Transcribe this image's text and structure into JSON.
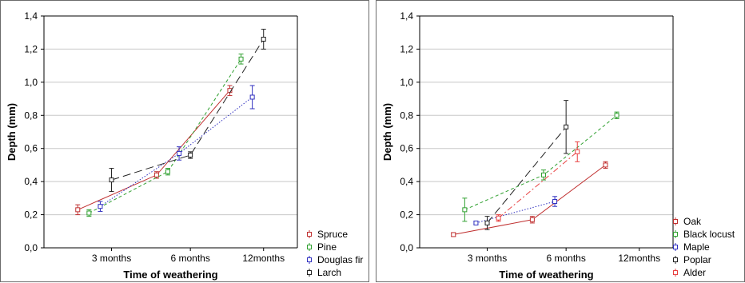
{
  "chart_data": [
    {
      "type": "line",
      "xlabel": "Time of weathering",
      "ylabel": "Depth (mm)",
      "categories": [
        "3 months",
        "6 months",
        "12months"
      ],
      "ylim": [
        0,
        1.4
      ],
      "yticks": [
        "0,0",
        "0,2",
        "0,4",
        "0,6",
        "0,8",
        "1,0",
        "1,2",
        "1,4"
      ],
      "grid": true,
      "legend_position": "bottom-right",
      "series": [
        {
          "name": "Spruce",
          "color": "#c03030",
          "dash": "solid",
          "x": [
            0.6,
            2.0,
            3.3
          ],
          "values": [
            0.23,
            0.44,
            0.95
          ],
          "err": [
            0.03,
            0.02,
            0.03
          ]
        },
        {
          "name": "Pine",
          "color": "#30a030",
          "dash": "dashed",
          "x": [
            0.8,
            2.2,
            3.5
          ],
          "values": [
            0.21,
            0.46,
            1.14
          ],
          "err": [
            0.02,
            0.02,
            0.03
          ]
        },
        {
          "name": "Douglas fir",
          "color": "#3030c0",
          "dash": "dotted",
          "x": [
            1.0,
            2.4,
            3.7
          ],
          "values": [
            0.25,
            0.57,
            0.91
          ],
          "err": [
            0.03,
            0.04,
            0.07
          ]
        },
        {
          "name": "Larch",
          "color": "#202020",
          "dash": "longdash",
          "x": [
            1.2,
            2.6,
            3.9
          ],
          "values": [
            0.41,
            0.56,
            1.26
          ],
          "err": [
            0.07,
            0.02,
            0.06
          ]
        }
      ]
    },
    {
      "type": "line",
      "xlabel": "Time of weathering",
      "ylabel": "Depth (mm)",
      "categories": [
        "3 months",
        "6 months",
        "12months"
      ],
      "ylim": [
        0,
        1.4
      ],
      "yticks": [
        "0,0",
        "0,2",
        "0,4",
        "0,6",
        "0,8",
        "1,0",
        "1,2",
        "1,4"
      ],
      "grid": true,
      "legend_position": "bottom-right",
      "series": [
        {
          "name": "Oak",
          "color": "#c03030",
          "dash": "solid",
          "x": [
            0.6,
            2.0,
            3.3
          ],
          "values": [
            0.08,
            0.17,
            0.5
          ],
          "err": [
            0.01,
            0.02,
            0.02
          ]
        },
        {
          "name": "Black locust",
          "color": "#30a030",
          "dash": "dashed",
          "x": [
            0.8,
            2.2,
            3.5
          ],
          "values": [
            0.23,
            0.44,
            0.8
          ],
          "err": [
            0.07,
            0.03,
            0.02
          ]
        },
        {
          "name": "Maple",
          "color": "#3030c0",
          "dash": "dotted",
          "x": [
            1.0,
            2.4
          ],
          "values": [
            0.15,
            0.28
          ],
          "err": [
            0.01,
            0.03
          ]
        },
        {
          "name": "Poplar",
          "color": "#202020",
          "dash": "longdash",
          "x": [
            1.2,
            2.6
          ],
          "values": [
            0.15,
            0.73
          ],
          "err": [
            0.04,
            0.16
          ]
        },
        {
          "name": "Alder",
          "color": "#e84040",
          "dash": "dashdot",
          "x": [
            1.4,
            2.8
          ],
          "values": [
            0.18,
            0.58
          ],
          "err": [
            0.02,
            0.06
          ]
        }
      ]
    }
  ]
}
